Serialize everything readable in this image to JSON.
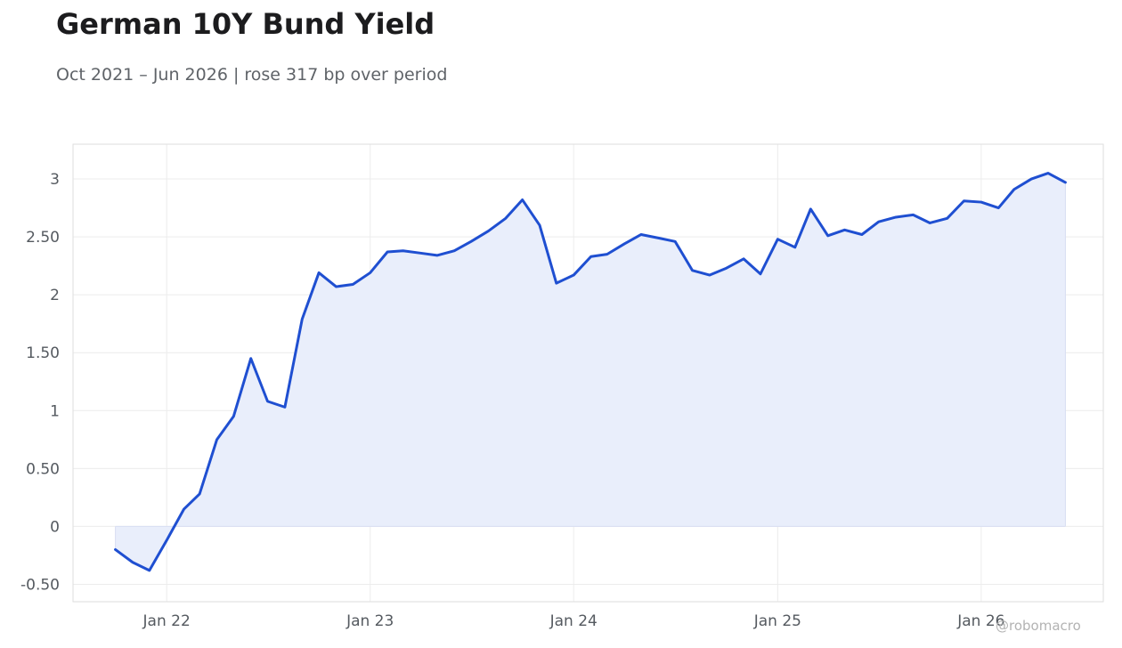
{
  "title": "German 10Y Bund Yield",
  "subtitle": "Oct 2021 – Jun 2026 | rose 317 bp over period",
  "watermark": "@robomacro",
  "colors": {
    "line": "#1f4fd1",
    "area_fill": "#e9eefb",
    "grid": "#ececec",
    "frame": "#dedede",
    "tick_text": "#555a60"
  },
  "chart_data": {
    "type": "area",
    "title": "German 10Y Bund Yield",
    "subtitle": "Oct 2021 – Jun 2026 | rose 317 bp over period",
    "xlabel": "",
    "ylabel": "",
    "xlim": [
      "2021-07-17",
      "2026-08-08"
    ],
    "ylim": [
      -0.65,
      3.3
    ],
    "grid": true,
    "x_ticks": [
      {
        "date": "2022-01-01",
        "label": "Jan 22"
      },
      {
        "date": "2023-01-01",
        "label": "Jan 23"
      },
      {
        "date": "2024-01-01",
        "label": "Jan 24"
      },
      {
        "date": "2025-01-01",
        "label": "Jan 25"
      },
      {
        "date": "2026-01-01",
        "label": "Jan 26"
      }
    ],
    "y_ticks": [
      {
        "value": -0.5,
        "label": "-0.50"
      },
      {
        "value": 0,
        "label": "0"
      },
      {
        "value": 0.5,
        "label": "0.50"
      },
      {
        "value": 1,
        "label": "1"
      },
      {
        "value": 1.5,
        "label": "1.50"
      },
      {
        "value": 2,
        "label": "2"
      },
      {
        "value": 2.5,
        "label": "2.50"
      },
      {
        "value": 3,
        "label": "3"
      }
    ],
    "series": [
      {
        "x": [
          "2021-10-01",
          "2021-11-01",
          "2021-12-01",
          "2022-01-01",
          "2022-02-01",
          "2022-03-01",
          "2022-04-01",
          "2022-05-01",
          "2022-06-01",
          "2022-07-01",
          "2022-08-01",
          "2022-09-01",
          "2022-10-01",
          "2022-11-01",
          "2022-12-01",
          "2023-01-01",
          "2023-02-01",
          "2023-03-01",
          "2023-04-01",
          "2023-05-01",
          "2023-06-01",
          "2023-07-01",
          "2023-08-01",
          "2023-09-01",
          "2023-10-01",
          "2023-11-01",
          "2023-12-01",
          "2024-01-01",
          "2024-02-01",
          "2024-03-01",
          "2024-04-01",
          "2024-05-01",
          "2024-06-01",
          "2024-07-01",
          "2024-08-01",
          "2024-09-01",
          "2024-10-01",
          "2024-11-01",
          "2024-12-01",
          "2025-01-01",
          "2025-02-01",
          "2025-03-01",
          "2025-04-01",
          "2025-05-01",
          "2025-06-01",
          "2025-07-01",
          "2025-08-01",
          "2025-09-01",
          "2025-10-01",
          "2025-11-01",
          "2025-12-01",
          "2026-01-01",
          "2026-02-01",
          "2026-03-01",
          "2026-04-01",
          "2026-05-01",
          "2026-06-01"
        ],
        "values": [
          -0.2,
          -0.31,
          -0.38,
          -0.12,
          0.15,
          0.28,
          0.75,
          0.95,
          1.45,
          1.08,
          1.03,
          1.79,
          2.19,
          2.07,
          2.09,
          2.19,
          2.37,
          2.38,
          2.36,
          2.34,
          2.38,
          2.46,
          2.55,
          2.66,
          2.82,
          2.6,
          2.1,
          2.17,
          2.33,
          2.35,
          2.44,
          2.52,
          2.49,
          2.46,
          2.21,
          2.17,
          2.23,
          2.31,
          2.18,
          2.48,
          2.41,
          2.74,
          2.51,
          2.56,
          2.52,
          2.63,
          2.67,
          2.69,
          2.62,
          2.66,
          2.81,
          2.8,
          2.75,
          2.91,
          3.0,
          3.05,
          2.97
        ]
      }
    ]
  }
}
